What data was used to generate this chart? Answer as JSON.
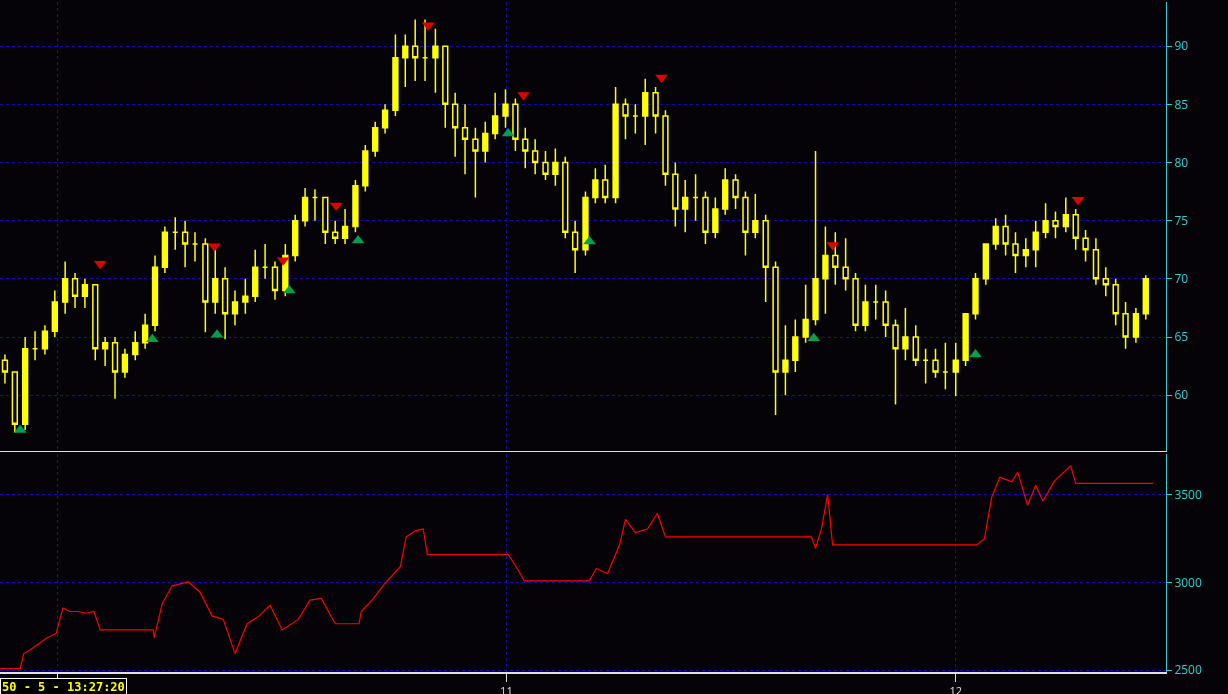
{
  "chart_data": [
    {
      "type": "candlestick",
      "xlim": [
        9.873,
        12.468
      ],
      "xticks": [
        {
          "value": 10,
          "label": null
        },
        {
          "value": 11,
          "label": null
        },
        {
          "value": 12,
          "label": null
        }
      ],
      "ylim": [
        55.2,
        93.8
      ],
      "yticks": [
        60,
        65,
        70,
        75,
        80,
        85,
        90
      ],
      "grid": true,
      "tick_labels": "y",
      "series": [
        {
          "color": "#ffff00",
          "x": [
            9.884,
            9.906,
            9.929,
            9.951,
            9.973,
            9.995,
            10.018,
            10.04,
            10.062,
            10.085,
            10.107,
            10.129,
            10.151,
            10.174,
            10.196,
            10.218,
            10.24,
            10.263,
            10.285,
            10.307,
            10.33,
            10.352,
            10.374,
            10.396,
            10.419,
            10.441,
            10.463,
            10.485,
            10.508,
            10.53,
            10.552,
            10.574,
            10.597,
            10.619,
            10.641,
            10.664,
            10.686,
            10.708,
            10.73,
            10.753,
            10.775,
            10.797,
            10.819,
            10.842,
            10.864,
            10.886,
            10.908,
            10.931,
            10.953,
            10.975,
            10.998,
            11.02,
            11.042,
            11.064,
            11.087,
            11.109,
            11.131,
            11.153,
            11.176,
            11.198,
            11.22,
            11.243,
            11.265,
            11.287,
            11.309,
            11.332,
            11.354,
            11.376,
            11.398,
            11.421,
            11.443,
            11.465,
            11.487,
            11.51,
            11.532,
            11.554,
            11.577,
            11.599,
            11.621,
            11.643,
            11.666,
            11.688,
            11.71,
            11.732,
            11.755,
            11.777,
            11.799,
            11.822,
            11.844,
            11.866,
            11.888,
            11.911,
            11.933,
            11.955,
            11.977,
            12.0,
            12.022,
            12.044,
            12.067,
            12.089,
            12.111,
            12.133,
            12.156,
            12.178,
            12.2,
            12.222,
            12.245,
            12.267,
            12.289,
            12.312,
            12.334,
            12.356,
            12.378,
            12.401,
            12.423
          ],
          "ohlc": [
            [
              63,
              63.5,
              61,
              62
            ],
            [
              62,
              62,
              56.8,
              57.5
            ],
            [
              57.5,
              65,
              57,
              64
            ],
            [
              64,
              65.5,
              63,
              64
            ],
            [
              64,
              66,
              63.5,
              65.5
            ],
            [
              65.5,
              69,
              65,
              68
            ],
            [
              68,
              71.5,
              67,
              70
            ],
            [
              70,
              70.5,
              67.5,
              68.5
            ],
            [
              68.5,
              70,
              67.5,
              69.5
            ],
            [
              69.5,
              69.5,
              63,
              64
            ],
            [
              64,
              65,
              62.5,
              64.5
            ],
            [
              64.5,
              65,
              59.7,
              62
            ],
            [
              62,
              64,
              61.5,
              63.5
            ],
            [
              63.5,
              65.5,
              63,
              64.5
            ],
            [
              64.5,
              67,
              64,
              66
            ],
            [
              66,
              72,
              65.5,
              71
            ],
            [
              71,
              74.5,
              70.5,
              74
            ],
            [
              74,
              75.3,
              72.5,
              74
            ],
            [
              74,
              75,
              71,
              73
            ],
            [
              73,
              74,
              71.5,
              73
            ],
            [
              73,
              73.5,
              65.4,
              68
            ],
            [
              68,
              72.5,
              67,
              70
            ],
            [
              70,
              71,
              64.8,
              67
            ],
            [
              67,
              69,
              66,
              68
            ],
            [
              68,
              70,
              67,
              68.5
            ],
            [
              68.5,
              72.5,
              68,
              71
            ],
            [
              71,
              73,
              70,
              71
            ],
            [
              71,
              71.5,
              68.2,
              69
            ],
            [
              69,
              73,
              68.5,
              72
            ],
            [
              72,
              75.5,
              71.5,
              75
            ],
            [
              75,
              77.8,
              74.5,
              77
            ],
            [
              77,
              77.7,
              75,
              77
            ],
            [
              77,
              77,
              73,
              74
            ],
            [
              74,
              75,
              73,
              73.5
            ],
            [
              73.5,
              76,
              73,
              74.5
            ],
            [
              74.5,
              78.5,
              74,
              78
            ],
            [
              78,
              81.5,
              77.5,
              81
            ],
            [
              81,
              83.5,
              80.5,
              83
            ],
            [
              83,
              85,
              82.5,
              84.5
            ],
            [
              84.5,
              91,
              84,
              89
            ],
            [
              89,
              91,
              86.5,
              90
            ],
            [
              90,
              92.3,
              87,
              89
            ],
            [
              89,
              92.3,
              87,
              89
            ],
            [
              89,
              91.5,
              86,
              90
            ],
            [
              90,
              90,
              83,
              85
            ],
            [
              85,
              86,
              80.5,
              83
            ],
            [
              83,
              85,
              79,
              82
            ],
            [
              82,
              83,
              77,
              81
            ],
            [
              81,
              83.5,
              80,
              82.5
            ],
            [
              82.5,
              86,
              82,
              84
            ],
            [
              84,
              86.3,
              83,
              85
            ],
            [
              85,
              85.5,
              81,
              82
            ],
            [
              82,
              83,
              79.5,
              81
            ],
            [
              81,
              82,
              79,
              80
            ],
            [
              80,
              81,
              78.5,
              79
            ],
            [
              79,
              81.2,
              78,
              80
            ],
            [
              80,
              80.5,
              73.5,
              74
            ],
            [
              74,
              75,
              70.5,
              72.5
            ],
            [
              72.5,
              77.5,
              72,
              77
            ],
            [
              77,
              79.5,
              76.5,
              78.5
            ],
            [
              78.5,
              79.8,
              76.5,
              77
            ],
            [
              77,
              86.5,
              76.5,
              85
            ],
            [
              85,
              85.5,
              82,
              84
            ],
            [
              84,
              85,
              82.5,
              84
            ],
            [
              84,
              87.2,
              81.5,
              86
            ],
            [
              86,
              86.5,
              82.5,
              84
            ],
            [
              84,
              84.5,
              78,
              79
            ],
            [
              79,
              80,
              74.5,
              76
            ],
            [
              76,
              78.5,
              74,
              77
            ],
            [
              77,
              79,
              75,
              77
            ],
            [
              77,
              77.5,
              73,
              74
            ],
            [
              74,
              77,
              73.5,
              76
            ],
            [
              76,
              79.5,
              75.5,
              78.5
            ],
            [
              78.5,
              79,
              76,
              77
            ],
            [
              77,
              77.5,
              72,
              74
            ],
            [
              74,
              77.3,
              73.5,
              75
            ],
            [
              75,
              75.5,
              68,
              71
            ],
            [
              71,
              71.5,
              58.3,
              62
            ],
            [
              62,
              66,
              60,
              63
            ],
            [
              63,
              66.5,
              62,
              65
            ],
            [
              65,
              69.5,
              64.5,
              66.5
            ],
            [
              66.5,
              81,
              66,
              70
            ],
            [
              70,
              74.5,
              67,
              72
            ],
            [
              72,
              74,
              69.5,
              71
            ],
            [
              71,
              73.5,
              69,
              70
            ],
            [
              70,
              70.5,
              65.5,
              66
            ],
            [
              66,
              69.5,
              65.5,
              68
            ],
            [
              68,
              69.5,
              66.5,
              68
            ],
            [
              68,
              69,
              65,
              66
            ],
            [
              66,
              66.5,
              59.2,
              64
            ],
            [
              64,
              67.5,
              63,
              65
            ],
            [
              65,
              66,
              62.5,
              63
            ],
            [
              63,
              64,
              61,
              63
            ],
            [
              63,
              64,
              61.5,
              62
            ],
            [
              62,
              64.5,
              60.5,
              62
            ],
            [
              62,
              64.5,
              59.9,
              63
            ],
            [
              63,
              67,
              62.5,
              67
            ],
            [
              67,
              70.5,
              66.5,
              70
            ],
            [
              70,
              73,
              69.5,
              73
            ],
            [
              73,
              75.2,
              72.5,
              74.5
            ],
            [
              74.5,
              75.5,
              72,
              73
            ],
            [
              73,
              74,
              70.5,
              72
            ],
            [
              72,
              73.5,
              71,
              72.5
            ],
            [
              72.5,
              75,
              71,
              74
            ],
            [
              74,
              76.5,
              73.5,
              75
            ],
            [
              75,
              75.8,
              73.5,
              74.5
            ],
            [
              74.5,
              77,
              74,
              75.5
            ],
            [
              75.5,
              76,
              72.5,
              73.5
            ],
            [
              73.5,
              74.2,
              71.5,
              72.5
            ],
            [
              72.5,
              73.5,
              69.5,
              70
            ],
            [
              70,
              71,
              68.5,
              69.5
            ],
            [
              69.5,
              70,
              66,
              67
            ],
            [
              67,
              68,
              64,
              65
            ],
            [
              65,
              67.5,
              64.5,
              67
            ],
            [
              67,
              70.3,
              66.5,
              70
            ]
          ]
        },
        {
          "type": "scatter",
          "color": "#00a050",
          "marker": "triangle",
          "x": [
            9.918,
            10.212,
            10.356,
            10.517,
            10.67,
            11.004,
            11.185,
            11.684,
            12.044
          ],
          "values": [
            57,
            64.8,
            65.2,
            69,
            73.3,
            82.5,
            73.2,
            64.9,
            63.5
          ]
        },
        {
          "type": "scatter",
          "color": "#e00000",
          "marker": "triangle",
          "x": [
            10.096,
            10.35,
            10.503,
            10.621,
            10.826,
            11.038,
            11.345,
            11.726,
            12.272
          ],
          "values": [
            71.3,
            72.8,
            71.6,
            76.3,
            91.8,
            85.8,
            87.3,
            72.9,
            76.8
          ]
        }
      ]
    },
    {
      "type": "line",
      "xlim": [
        9.873,
        12.468
      ],
      "xticks": [
        {
          "value": 10,
          "label": null
        },
        11,
        12
      ],
      "ylim": [
        2490,
        3733
      ],
      "yticks": [
        2500,
        3000,
        3500
      ],
      "grid": true,
      "marker": "none",
      "annotations": [
        "50 - 5 - 13:27:20"
      ],
      "series": [
        {
          "color": "#ff0000",
          "x": [
            9.873,
            9.918,
            9.926,
            9.942,
            9.978,
            9.998,
            10.013,
            10.029,
            10.047,
            10.065,
            10.082,
            10.096,
            10.214,
            10.216,
            10.234,
            10.256,
            10.292,
            10.318,
            10.345,
            10.37,
            10.396,
            10.423,
            10.45,
            10.474,
            10.501,
            10.537,
            10.563,
            10.588,
            10.619,
            10.672,
            10.677,
            10.701,
            10.728,
            10.764,
            10.777,
            10.797,
            10.815,
            10.824,
            11.004,
            11.024,
            11.04,
            11.185,
            11.2,
            11.225,
            11.252,
            11.265,
            11.287,
            11.314,
            11.336,
            11.354,
            11.679,
            11.688,
            11.701,
            11.715,
            11.726,
            12.047,
            12.064,
            12.08,
            12.098,
            12.125,
            12.138,
            12.16,
            12.178,
            12.194,
            12.22,
            12.256,
            12.267,
            12.439
          ],
          "values": [
            2510,
            2510,
            2595,
            2620,
            2685,
            2710,
            2855,
            2835,
            2835,
            2825,
            2835,
            2730,
            2730,
            2685,
            2880,
            2980,
            3005,
            2945,
            2810,
            2790,
            2595,
            2765,
            2810,
            2870,
            2730,
            2790,
            2900,
            2910,
            2765,
            2765,
            2835,
            2900,
            2990,
            3090,
            3260,
            3295,
            3305,
            3160,
            3160,
            3080,
            3010,
            3010,
            3080,
            3050,
            3215,
            3360,
            3285,
            3305,
            3395,
            3260,
            3260,
            3195,
            3305,
            3500,
            3215,
            3215,
            3250,
            3485,
            3600,
            3575,
            3630,
            3440,
            3555,
            3465,
            3580,
            3665,
            3565,
            3565
          ]
        }
      ]
    }
  ]
}
